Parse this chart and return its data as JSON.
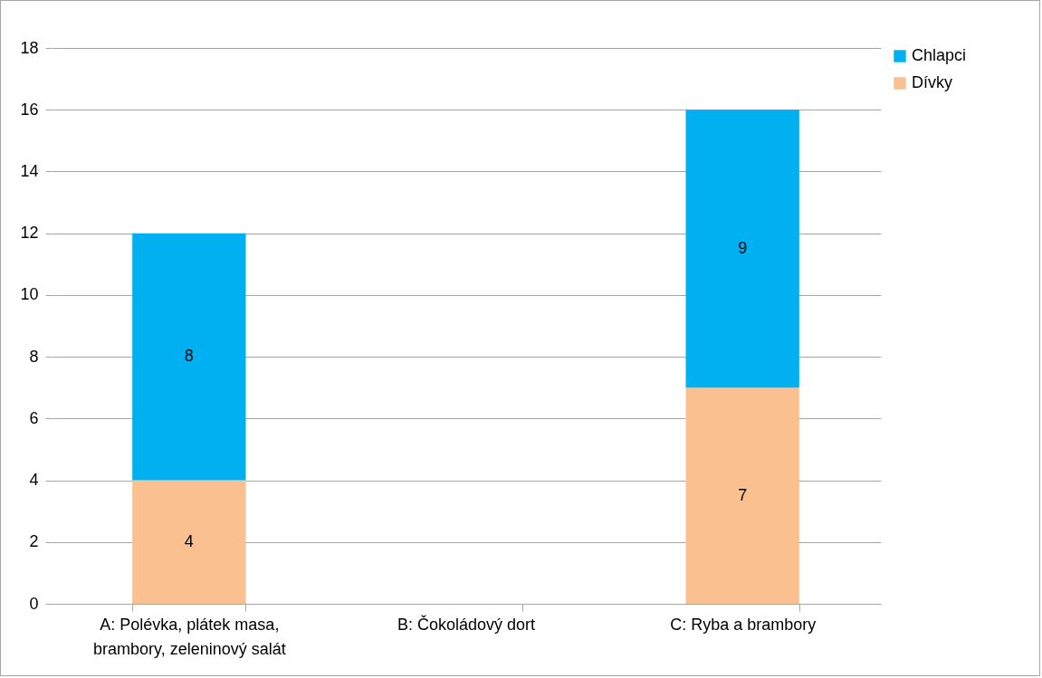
{
  "chart_data": {
    "type": "bar",
    "stacked": true,
    "categories": [
      "A: Polévka, plátek masa, brambory, zeleninový salát",
      "B: Čokoládový dort",
      "C: Ryba a brambory"
    ],
    "series": [
      {
        "name": "Dívky",
        "color": "#fac090",
        "values": [
          4,
          null,
          7
        ]
      },
      {
        "name": "Chlapci",
        "color": "#00b0f0",
        "values": [
          8,
          null,
          9
        ]
      }
    ],
    "ylim": [
      0,
      18
    ],
    "yticks": [
      0,
      2,
      4,
      6,
      8,
      10,
      12,
      14,
      16,
      18
    ],
    "grid": "y",
    "legend": "right",
    "data_labels": true
  }
}
